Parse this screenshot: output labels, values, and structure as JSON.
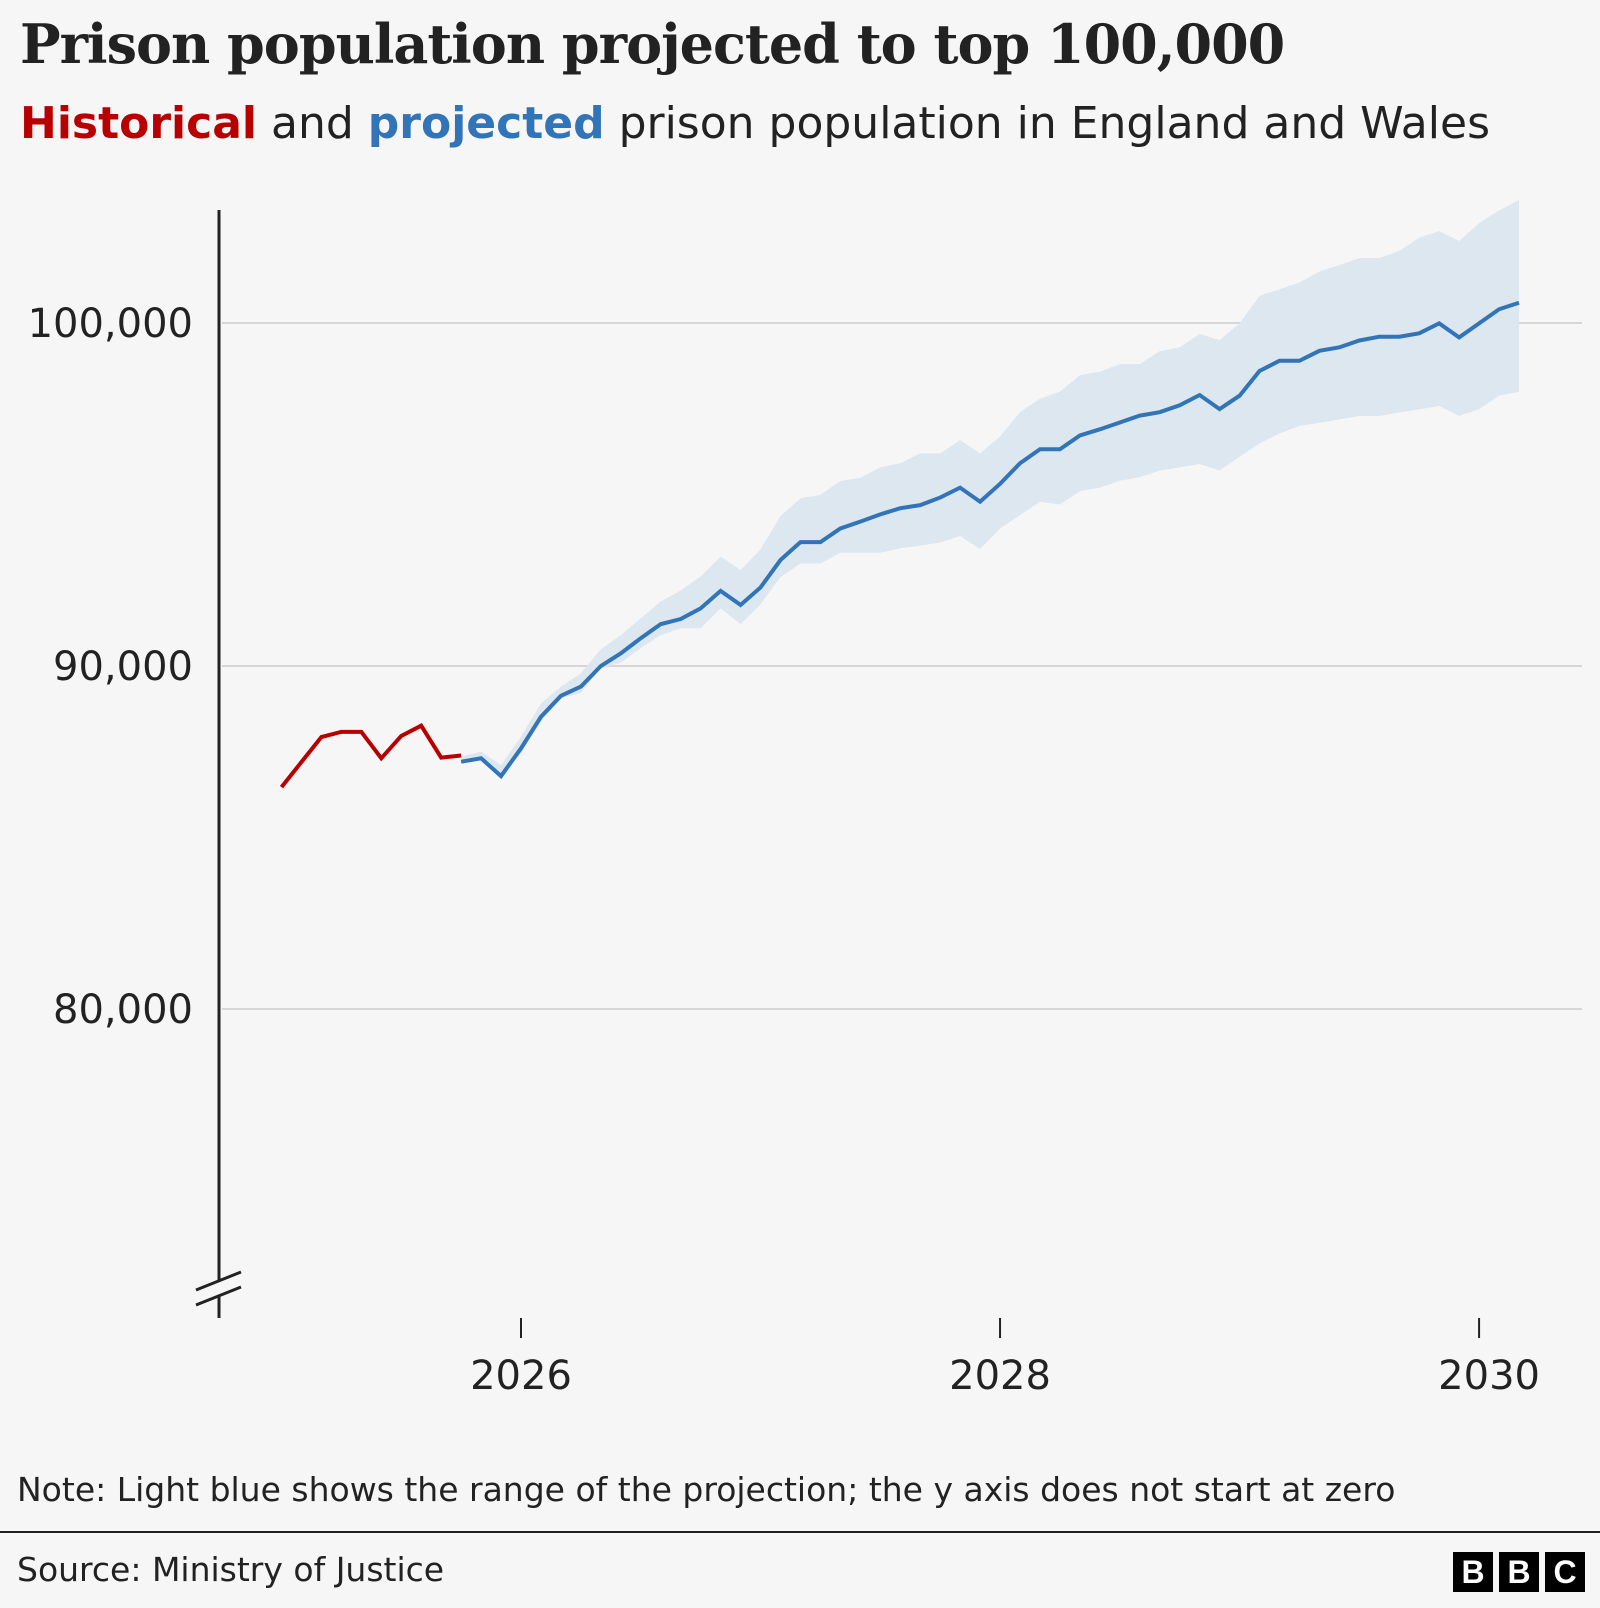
{
  "header": {
    "title": "Prison population projected to top 100,000",
    "subtitle_parts": [
      "Historical",
      " and ",
      "projected",
      " prison population in England and Wales"
    ]
  },
  "footer": {
    "note": "Note: Light blue shows the range of the projection; the y axis does not start at zero",
    "source": "Source: Ministry of Justice",
    "logo_letters": [
      "B",
      "B",
      "C"
    ]
  },
  "colors": {
    "historical": "#b80000",
    "projected": "#3274b8",
    "range": "#dce7f0",
    "grid": "#d6d6d6",
    "background": "#f6f6f6"
  },
  "chart_data": {
    "type": "line",
    "title": "Prison population projected to top 100,000",
    "xlabel": "",
    "ylabel": "",
    "ylim": [
      71000,
      103300
    ],
    "yticks": [
      80000,
      90000,
      100000
    ],
    "ytick_labels": [
      "80,000",
      "90,000",
      "100,000"
    ],
    "xticks": [
      "2026-01",
      "2028-01",
      "2030-01"
    ],
    "xtick_labels": [
      "2026",
      "2028",
      "2030"
    ],
    "grid": "horizontal",
    "y_axis_break": true,
    "historical": {
      "name": "Historical",
      "x": [
        "2025-01",
        "2025-02",
        "2025-03",
        "2025-04",
        "2025-05",
        "2025-06",
        "2025-07",
        "2025-08",
        "2025-09",
        "2025-10"
      ],
      "values": [
        86470,
        87200,
        87930,
        88080,
        88080,
        87310,
        87960,
        88260,
        87330,
        87390
      ]
    },
    "projected": {
      "name": "projected",
      "x": [
        "2025-10",
        "2025-11",
        "2025-12",
        "2026-01",
        "2026-02",
        "2026-03",
        "2026-04",
        "2026-05",
        "2026-06",
        "2026-07",
        "2026-08",
        "2026-09",
        "2026-10",
        "2026-11",
        "2026-12",
        "2027-01",
        "2027-02",
        "2027-03",
        "2027-04",
        "2027-05",
        "2027-06",
        "2027-07",
        "2027-08",
        "2027-09",
        "2027-10",
        "2027-11",
        "2027-12",
        "2028-01",
        "2028-02",
        "2028-03",
        "2028-04",
        "2028-05",
        "2028-06",
        "2028-07",
        "2028-08",
        "2028-09",
        "2028-10",
        "2028-11",
        "2028-12",
        "2029-01",
        "2029-02",
        "2029-03",
        "2029-04",
        "2029-05",
        "2029-06",
        "2029-07",
        "2029-08",
        "2029-09",
        "2029-10",
        "2029-11",
        "2029-12",
        "2030-01",
        "2030-02",
        "2030-03"
      ],
      "values": [
        87210,
        87310,
        86790,
        87600,
        88520,
        89130,
        89400,
        90000,
        90370,
        90810,
        91220,
        91370,
        91680,
        92190,
        91780,
        92290,
        93090,
        93610,
        93610,
        94010,
        94210,
        94420,
        94600,
        94690,
        94910,
        95200,
        94790,
        95310,
        95910,
        96320,
        96320,
        96720,
        96900,
        97100,
        97300,
        97400,
        97600,
        97900,
        97490,
        97880,
        98600,
        98900,
        98900,
        99190,
        99290,
        99490,
        99600,
        99600,
        99700,
        99990,
        99580,
        99990,
        100400,
        100590
      ],
      "range_upper": [
        87360,
        87500,
        87110,
        87940,
        88910,
        89400,
        89790,
        90490,
        90900,
        91390,
        91880,
        92200,
        92610,
        93190,
        92800,
        93400,
        94370,
        94890,
        94990,
        95390,
        95490,
        95790,
        95910,
        96200,
        96200,
        96590,
        96200,
        96690,
        97400,
        97790,
        98000,
        98480,
        98580,
        98800,
        98800,
        99180,
        99290,
        99680,
        99500,
        99990,
        100790,
        100980,
        101180,
        101500,
        101690,
        101890,
        101890,
        102100,
        102490,
        102680,
        102390,
        102910,
        103280,
        103590
      ],
      "range_lower": [
        87160,
        87260,
        86790,
        87450,
        88380,
        89060,
        89220,
        89930,
        90100,
        90520,
        90900,
        91100,
        91100,
        91680,
        91220,
        91800,
        92590,
        92990,
        92990,
        93300,
        93300,
        93300,
        93430,
        93510,
        93600,
        93790,
        93410,
        94010,
        94400,
        94790,
        94710,
        95100,
        95200,
        95400,
        95500,
        95700,
        95790,
        95890,
        95700,
        96100,
        96490,
        96780,
        97000,
        97090,
        97190,
        97290,
        97290,
        97390,
        97480,
        97580,
        97290,
        97490,
        97880,
        98000
      ]
    }
  }
}
